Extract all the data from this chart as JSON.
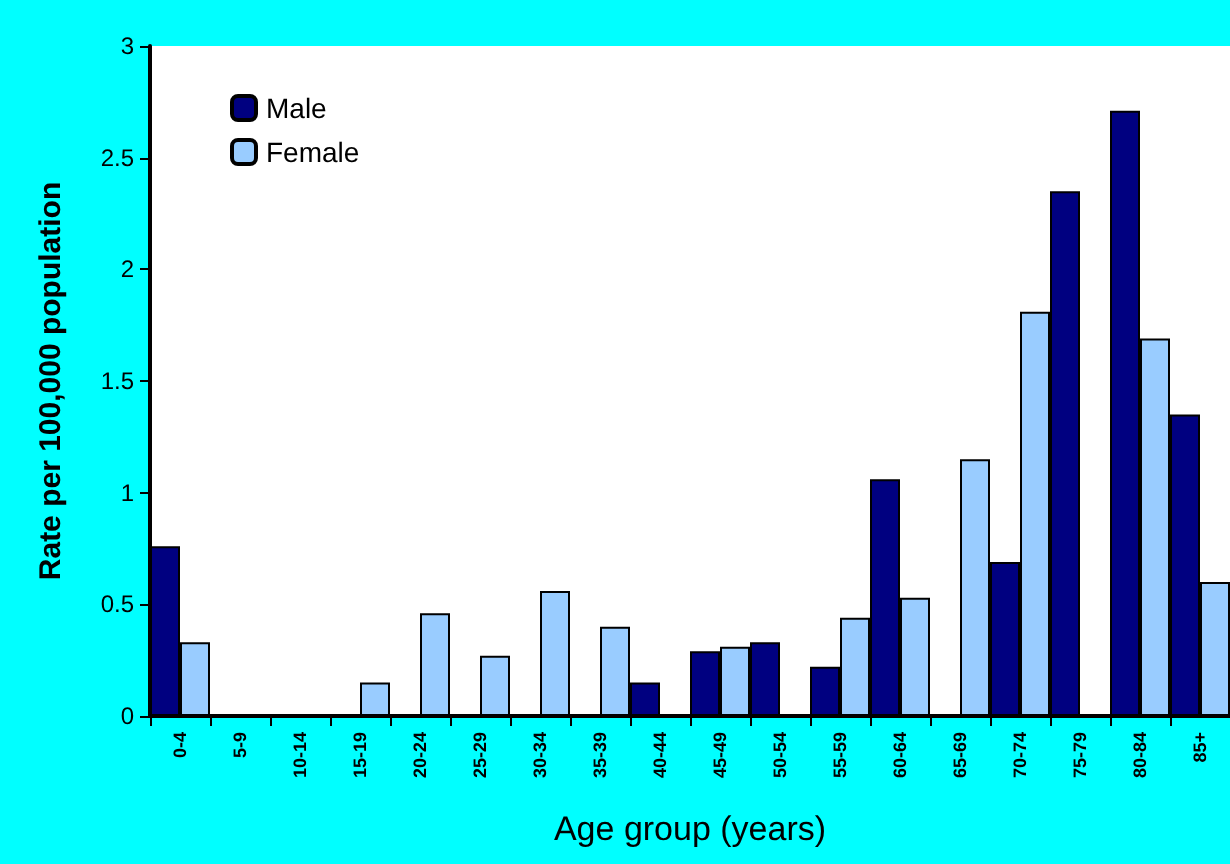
{
  "chart_data": {
    "type": "bar",
    "xlabel": "Age group (years)",
    "ylabel": "Rate per 100,000 population",
    "categories": [
      "0-4",
      "5-9",
      "10-14",
      "15-19",
      "20-24",
      "25-29",
      "30-34",
      "35-39",
      "40-44",
      "45-49",
      "50-54",
      "55-59",
      "60-64",
      "65-69",
      "70-74",
      "75-79",
      "80-84",
      "85+"
    ],
    "series": [
      {
        "name": "Male",
        "color": "#000080",
        "values": [
          0.76,
          0,
          0,
          0,
          0,
          0,
          0,
          0,
          0.15,
          0.29,
          0.33,
          0.22,
          1.06,
          0,
          0.69,
          2.35,
          2.71,
          1.35
        ]
      },
      {
        "name": "Female",
        "color": "#99ccff",
        "values": [
          0.33,
          0,
          0,
          0.15,
          0.46,
          0.27,
          0.56,
          0.4,
          0,
          0.31,
          0,
          0.44,
          0.53,
          1.15,
          1.81,
          0,
          1.69,
          0.6
        ]
      }
    ],
    "ylim": [
      0,
      3
    ],
    "yticks": [
      0,
      0.5,
      1,
      1.5,
      2,
      2.5,
      3
    ],
    "grid": false,
    "legend": "top left"
  }
}
